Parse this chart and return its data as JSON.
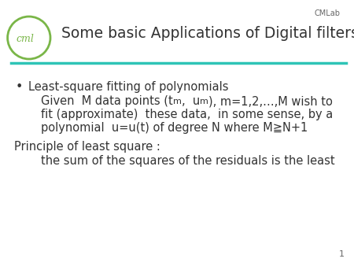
{
  "background_color": "#ffffff",
  "cmlab_label": "CMLab",
  "cmlab_label_color": "#666666",
  "page_number": "1",
  "title": "Some basic Applications of Digital filters :",
  "title_color": "#333333",
  "title_fontsize": 13.5,
  "logo_color": "#7ab648",
  "line_color": "#2ec4b6",
  "body_color": "#333333",
  "body_fontsize": 10.5,
  "bullet_text": "Least-square fitting of polynomials",
  "indent_line2": "fit (approximate)  these data,  in some sense, by a",
  "indent_line3": "polynomial  u=u(t) of degree N where M≧N+1",
  "principle_text": "Principle of least square :",
  "sum_text": "the sum of the squares of the residuals is the least"
}
